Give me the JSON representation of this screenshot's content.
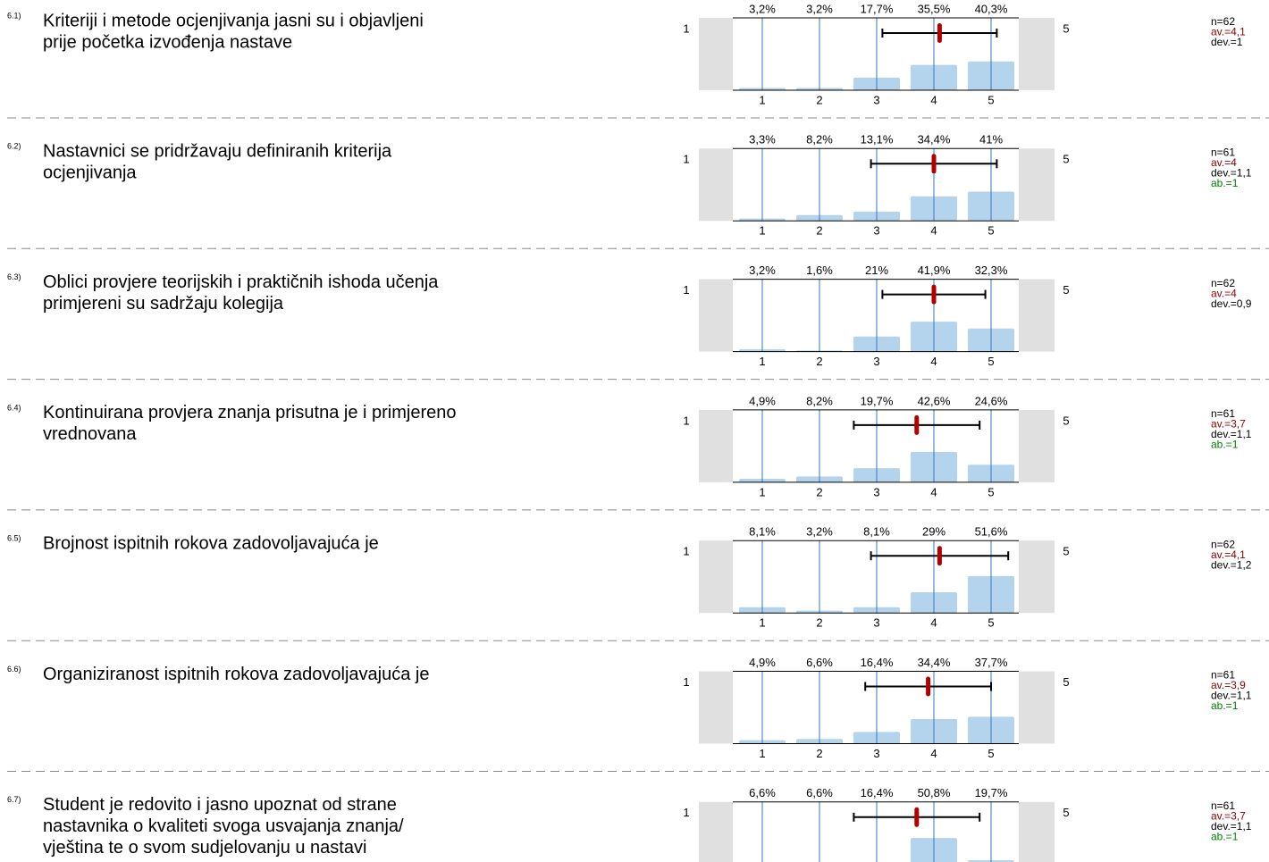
{
  "scale": {
    "left": "1",
    "right": "5",
    "ticks": [
      "1",
      "2",
      "3",
      "4",
      "5"
    ]
  },
  "items": [
    {
      "number": "6.1)",
      "question": [
        "Kriteriji i metode ocjenjivanja jasni su i objavljeni",
        "prije početka izvođenja nastave"
      ],
      "values": [
        3.2,
        3.2,
        17.7,
        35.5,
        40.3
      ],
      "value_labels": [
        "3,2%",
        "3,2%",
        "17,7%",
        "35,5%",
        "40,3%"
      ],
      "mean": 4.1,
      "dev": 1,
      "n": "n=62",
      "av": "av.=4,1",
      "dev_label": "dev.=1"
    },
    {
      "number": "6.2)",
      "question": [
        "Nastavnici se pridržavaju definiranih kriterija",
        "ocjenjivanja"
      ],
      "values": [
        3.3,
        8.2,
        13.1,
        34.4,
        41
      ],
      "value_labels": [
        "3,3%",
        "8,2%",
        "13,1%",
        "34,4%",
        "41%"
      ],
      "mean": 4,
      "dev": 1.1,
      "n": "n=61",
      "av": "av.=4",
      "dev_label": "dev.=1,1",
      "ab": "ab.=1"
    },
    {
      "number": "6.3)",
      "question": [
        "Oblici provjere teorijskih i praktičnih ishoda učenja",
        "primjereni su sadržaju kolegija"
      ],
      "values": [
        3.2,
        1.6,
        21,
        41.9,
        32.3
      ],
      "value_labels": [
        "3,2%",
        "1,6%",
        "21%",
        "41,9%",
        "32,3%"
      ],
      "mean": 4,
      "dev": 0.9,
      "n": "n=62",
      "av": "av.=4",
      "dev_label": "dev.=0,9"
    },
    {
      "number": "6.4)",
      "question": [
        "Kontinuirana provjera znanja prisutna je i primjereno",
        "vrednovana"
      ],
      "values": [
        4.9,
        8.2,
        19.7,
        42.6,
        24.6
      ],
      "value_labels": [
        "4,9%",
        "8,2%",
        "19,7%",
        "42,6%",
        "24,6%"
      ],
      "mean": 3.7,
      "dev": 1.1,
      "n": "n=61",
      "av": "av.=3,7",
      "dev_label": "dev.=1,1",
      "ab": "ab.=1"
    },
    {
      "number": "6.5)",
      "question": [
        "Brojnost ispitnih rokova zadovoljavajuća je"
      ],
      "values": [
        8.1,
        3.2,
        8.1,
        29,
        51.6
      ],
      "value_labels": [
        "8,1%",
        "3,2%",
        "8,1%",
        "29%",
        "51,6%"
      ],
      "mean": 4.1,
      "dev": 1.2,
      "n": "n=62",
      "av": "av.=4,1",
      "dev_label": "dev.=1,2"
    },
    {
      "number": "6.6)",
      "question": [
        "Organiziranost ispitnih rokova zadovoljavajuća je"
      ],
      "values": [
        4.9,
        6.6,
        16.4,
        34.4,
        37.7
      ],
      "value_labels": [
        "4,9%",
        "6,6%",
        "16,4%",
        "34,4%",
        "37,7%"
      ],
      "mean": 3.9,
      "dev": 1.1,
      "n": "n=61",
      "av": "av.=3,9",
      "dev_label": "dev.=1,1",
      "ab": "ab.=1"
    },
    {
      "number": "6.7)",
      "question": [
        "Student je redovito i jasno upoznat od strane",
        "nastavnika o kvaliteti svoga usvajanja znanja/",
        "vještina te o svom sudjelovanju u nastavi"
      ],
      "values": [
        6.6,
        6.6,
        16.4,
        50.8,
        19.7
      ],
      "value_labels": [
        "6,6%",
        "6,6%",
        "16,4%",
        "50,8%",
        "19,7%"
      ],
      "mean": 3.7,
      "dev": 1.1,
      "n": "n=61",
      "av": "av.=3,7",
      "dev_label": "dev.=1,1",
      "ab": "ab.=1"
    }
  ]
}
